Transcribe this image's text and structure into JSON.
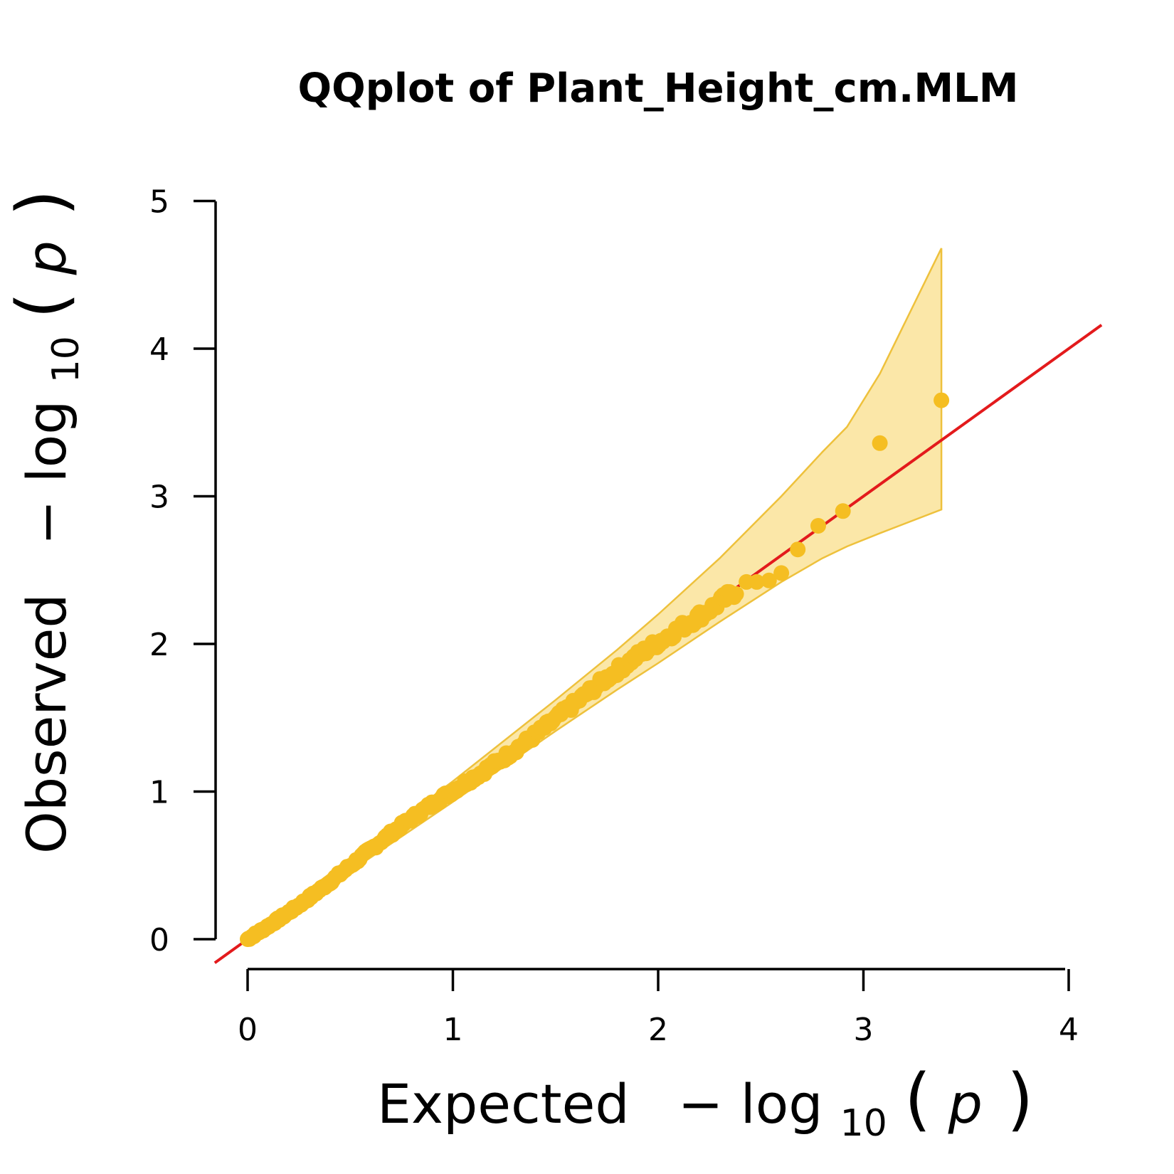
{
  "chart_data": {
    "type": "scatter",
    "title": "QQplot of Plant_Height_cm.MLM",
    "xlabel": {
      "main": "Expected",
      "minus": "−",
      "func": "log",
      "sub": "10",
      "open": "(",
      "var": "p",
      "close": ")"
    },
    "ylabel": {
      "main": "Observed",
      "minus": "−",
      "func": "log",
      "sub": "10",
      "open": "(",
      "var": "p",
      "close": ")"
    },
    "xlim": [
      0,
      4
    ],
    "ylim": [
      0,
      5
    ],
    "xticks": [
      "0",
      "1",
      "2",
      "3",
      "4"
    ],
    "yticks": [
      "0",
      "1",
      "2",
      "3",
      "4",
      "5"
    ],
    "colors": {
      "points": "#F5BE22",
      "band_fill": "#FBE7A8",
      "band_edge": "#EEC13C",
      "reference": "#E31A1C",
      "axis": "#000000"
    },
    "reference_line": {
      "slope": 1,
      "intercept": 0
    },
    "confidence_band": {
      "x": [
        0.0,
        0.5,
        1.0,
        1.5,
        1.8,
        2.0,
        2.3,
        2.6,
        2.8,
        2.92,
        3.08,
        3.38
      ],
      "upper": [
        0.02,
        0.55,
        1.07,
        1.62,
        1.96,
        2.2,
        2.58,
        3.0,
        3.3,
        3.47,
        3.83,
        4.68
      ],
      "lower": [
        0.0,
        0.46,
        0.93,
        1.41,
        1.69,
        1.87,
        2.15,
        2.42,
        2.58,
        2.66,
        2.75,
        2.91
      ]
    },
    "outlier_points": [
      {
        "x": 2.43,
        "y": 2.42
      },
      {
        "x": 2.48,
        "y": 2.42
      },
      {
        "x": 2.54,
        "y": 2.43
      },
      {
        "x": 2.6,
        "y": 2.48
      },
      {
        "x": 2.68,
        "y": 2.64
      },
      {
        "x": 2.78,
        "y": 2.8
      },
      {
        "x": 2.9,
        "y": 2.9
      },
      {
        "x": 3.08,
        "y": 3.36
      },
      {
        "x": 3.38,
        "y": 3.65
      }
    ],
    "dense_range": {
      "x_max": 2.38
    }
  }
}
